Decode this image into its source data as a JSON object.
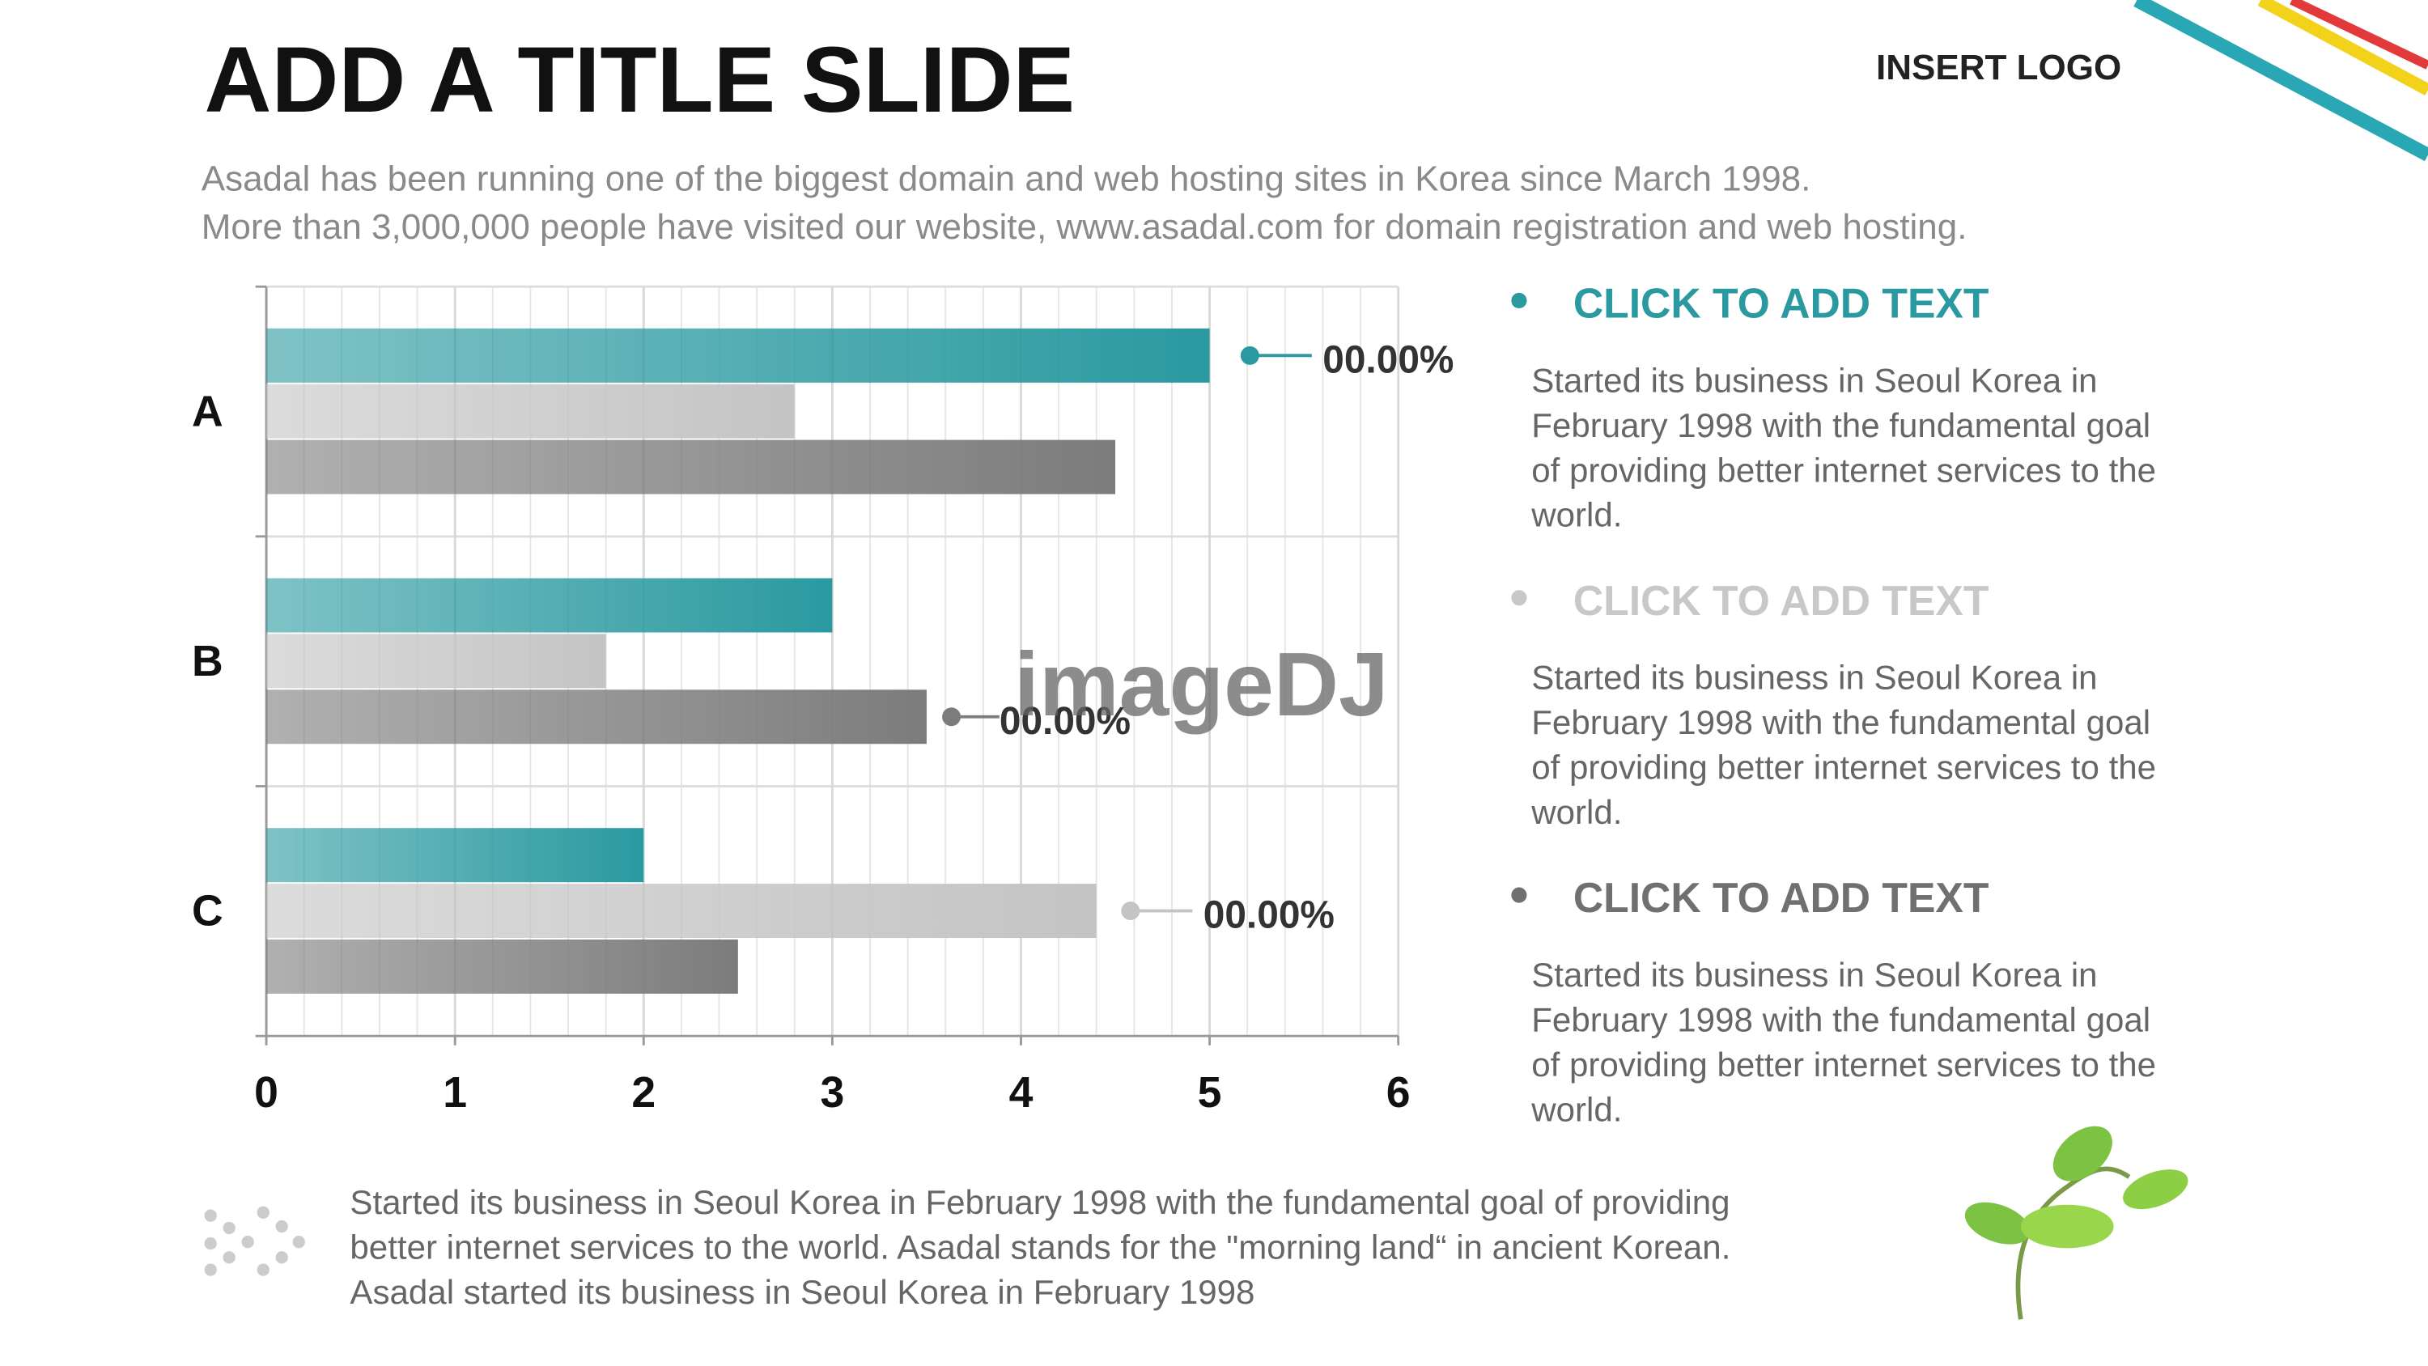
{
  "slide": {
    "title": "ADD A TITLE SLIDE",
    "logo": "INSERT LOGO",
    "subtitle": [
      "Asadal has been running one of the biggest domain and web hosting sites in Korea since March 1998.",
      "More than 3,000,000 people have visited our website,  www.asadal.com for domain registration and web hosting."
    ],
    "items": [
      {
        "heading": "CLICK TO ADD TEXT",
        "color": "#2a9aa0",
        "body": [
          "Started its business in Seoul Korea  in",
          "February 1998 with the fundamental goal",
          "of providing better internet services to the",
          "world."
        ]
      },
      {
        "heading": "CLICK TO ADD TEXT",
        "color": "#c8c8c8",
        "body": [
          "Started its business in Seoul Korea  in",
          "February 1998 with the fundamental goal",
          "of providing better internet services to the",
          "world."
        ]
      },
      {
        "heading": "CLICK TO ADD TEXT",
        "color": "#707070",
        "body": [
          "Started its business in Seoul Korea  in",
          "February 1998 with the fundamental goal",
          "of providing better internet services to the",
          "world."
        ]
      }
    ],
    "footer": [
      "Started its business in Seoul Korea  in February 1998 with the fundamental goal of providing",
      "better internet services to the world. Asadal stands for the \"morning land“ in ancient Korean.",
      "Asadal started its business in Seoul Korea  in February 1998"
    ],
    "watermark": "imageDJ"
  },
  "chart_data": {
    "type": "hbar",
    "categories": [
      "A",
      "B",
      "C"
    ],
    "series": [
      {
        "color": "#2a9aa0",
        "values": [
          5,
          3,
          2
        ]
      },
      {
        "color": "#c4c4c4",
        "values": [
          2.8,
          1.8,
          4.4
        ]
      },
      {
        "color": "#7c7c7c",
        "values": [
          4.5,
          3.5,
          2.5
        ]
      }
    ],
    "xlim": [
      0,
      6
    ],
    "xticks": [
      0,
      1,
      2,
      3,
      4,
      5,
      6
    ],
    "grid": true,
    "annotations": [
      "00.00%",
      "00.00%",
      "00.00%"
    ]
  }
}
